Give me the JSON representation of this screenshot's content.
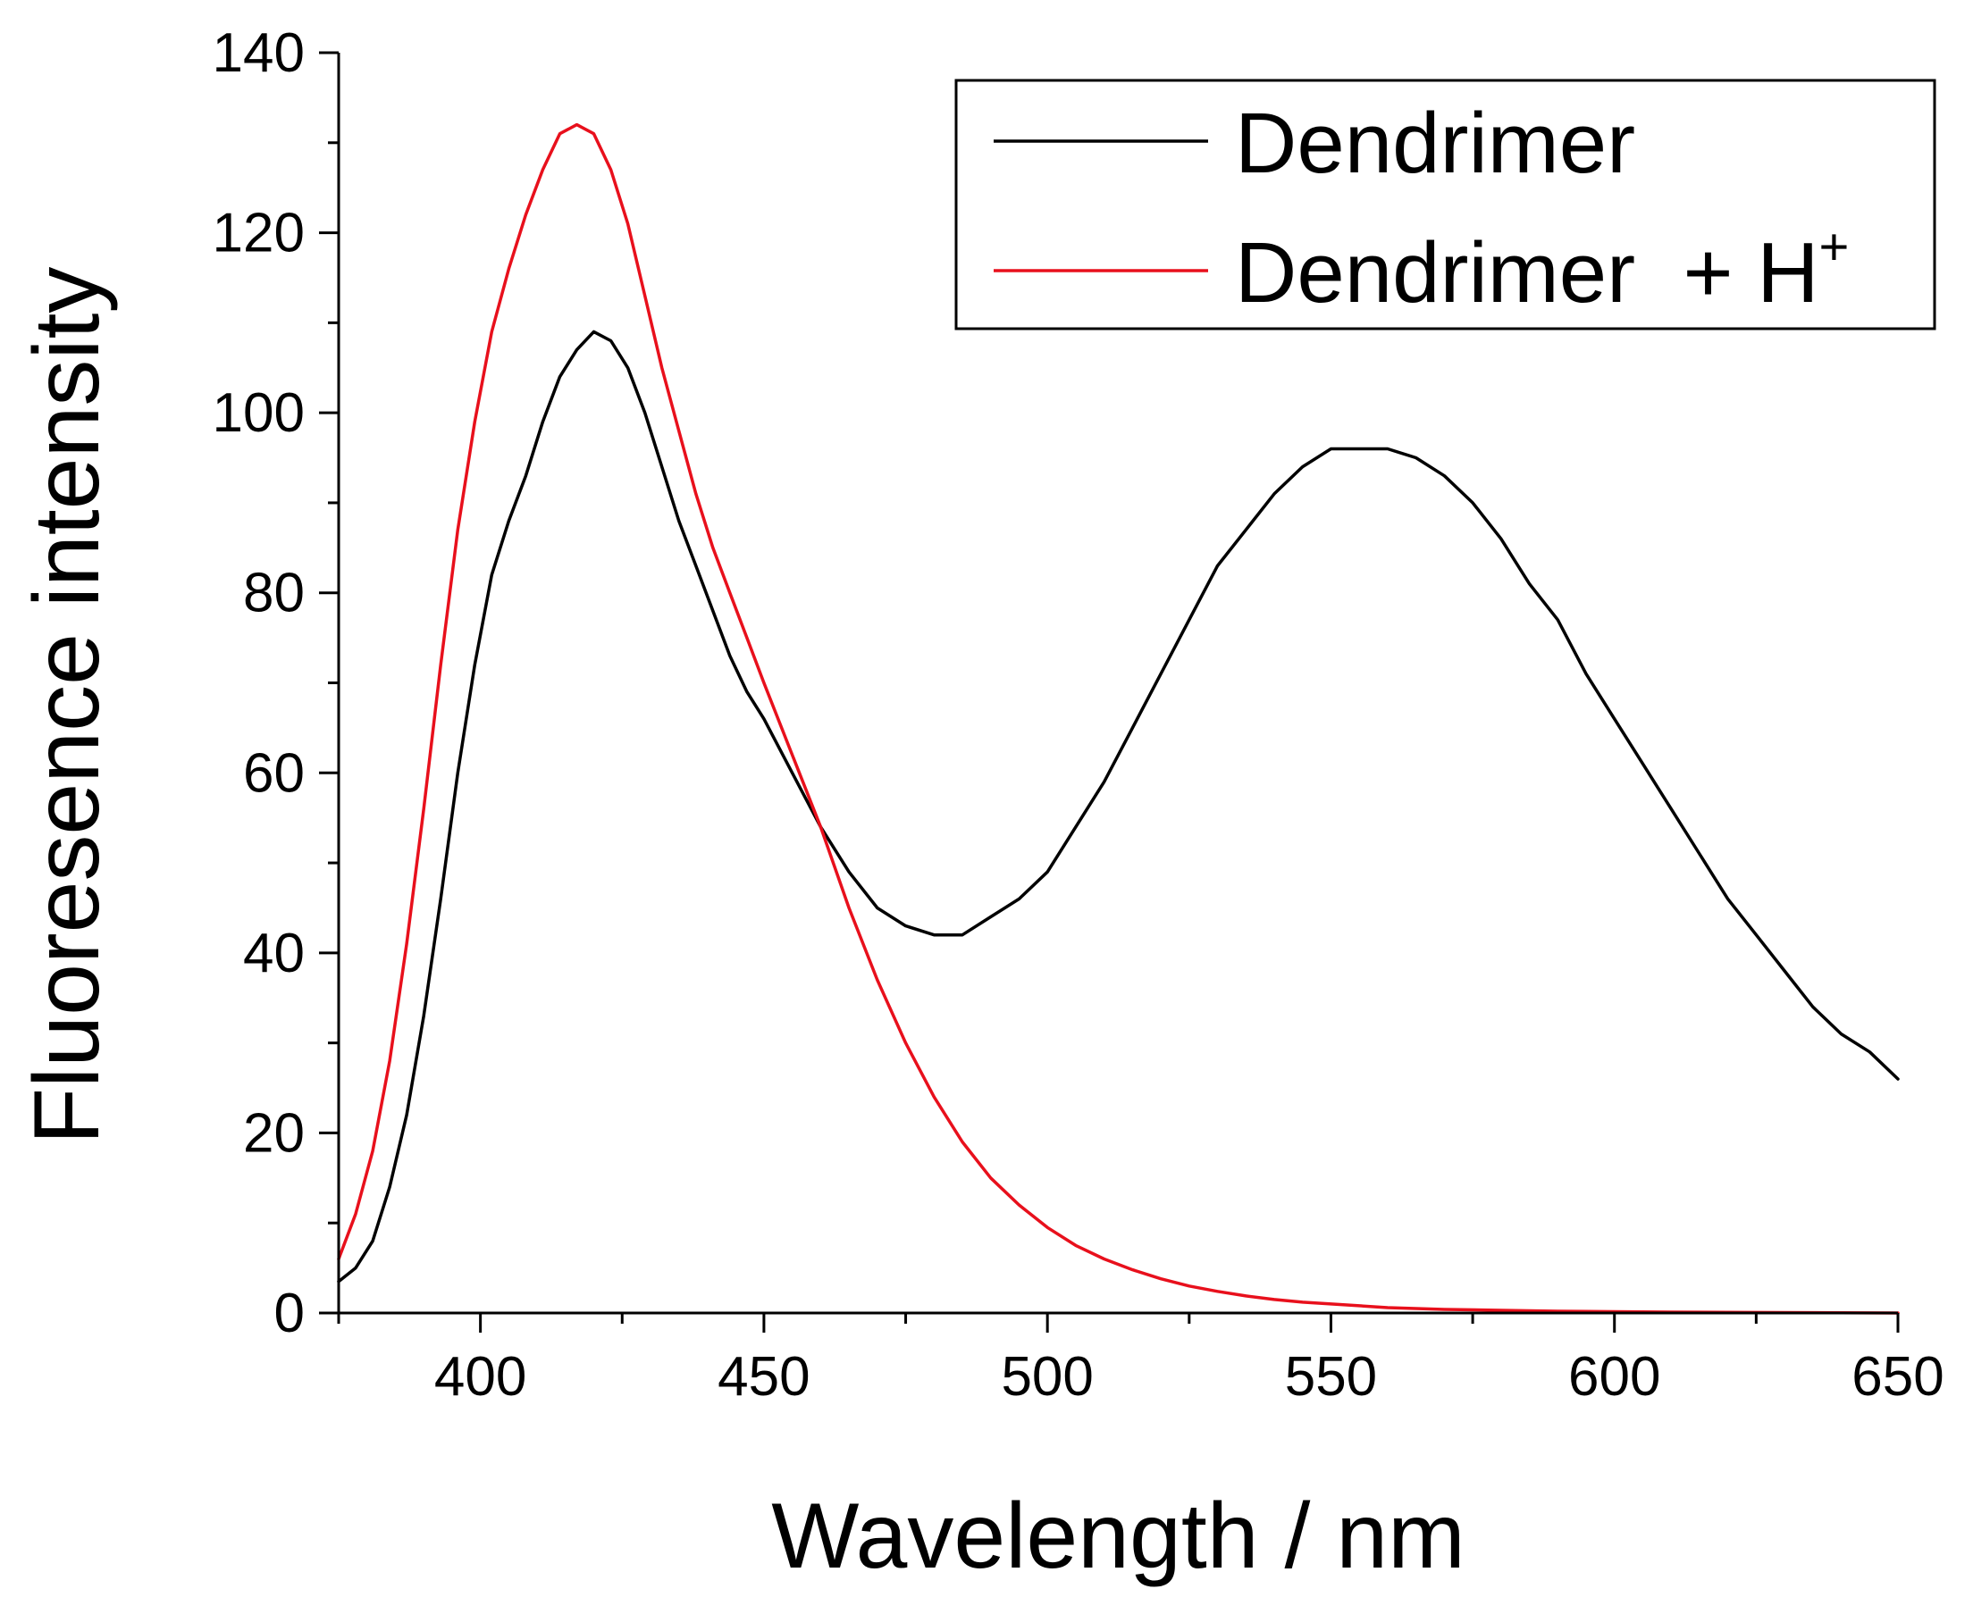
{
  "chart_data": {
    "type": "line",
    "title": "",
    "xlabel": "Wavelength / nm",
    "ylabel": "Fluoresence intensity",
    "xlim": [
      375,
      650
    ],
    "ylim": [
      0,
      140
    ],
    "x_ticks": [
      400,
      450,
      500,
      550,
      600,
      650
    ],
    "y_ticks": [
      0,
      20,
      40,
      60,
      80,
      100,
      120,
      140
    ],
    "x_tick_labels": [
      "400",
      "450",
      "500",
      "550",
      "600",
      "650"
    ],
    "y_tick_labels": [
      "0",
      "20",
      "40",
      "60",
      "80",
      "100",
      "120",
      "140"
    ],
    "grid": false,
    "legend_position": "top-right",
    "series": [
      {
        "name": "Dendrimer",
        "color": "#000000",
        "x": [
          375,
          378,
          381,
          384,
          387,
          390,
          393,
          396,
          399,
          402,
          405,
          408,
          411,
          414,
          417,
          420,
          423,
          426,
          429,
          432,
          435,
          438,
          441,
          444,
          447,
          450,
          455,
          460,
          465,
          470,
          475,
          480,
          485,
          490,
          495,
          500,
          505,
          510,
          515,
          520,
          525,
          530,
          535,
          540,
          545,
          550,
          555,
          560,
          565,
          570,
          575,
          580,
          585,
          590,
          595,
          600,
          605,
          610,
          615,
          620,
          625,
          630,
          635,
          640,
          645,
          650
        ],
        "values": [
          3.5,
          5,
          8,
          14,
          22,
          33,
          46,
          60,
          72,
          82,
          88,
          93,
          99,
          104,
          107,
          109,
          108,
          105,
          100,
          94,
          88,
          83,
          78,
          73,
          69,
          66,
          60,
          54,
          49,
          45,
          43,
          42,
          42,
          44,
          46,
          49,
          54,
          59,
          65,
          71,
          77,
          83,
          87,
          91,
          94,
          96,
          96,
          96,
          95,
          93,
          90,
          86,
          81,
          77,
          71,
          66,
          61,
          56,
          51,
          46,
          42,
          38,
          34,
          31,
          29,
          26
        ]
      },
      {
        "name": "Dendrimer  + H",
        "name_superscript": "+",
        "color": "#e8101c",
        "x": [
          375,
          378,
          381,
          384,
          387,
          390,
          393,
          396,
          399,
          402,
          405,
          408,
          411,
          414,
          417,
          420,
          423,
          426,
          429,
          432,
          435,
          438,
          441,
          444,
          447,
          450,
          455,
          460,
          465,
          470,
          475,
          480,
          485,
          490,
          495,
          500,
          505,
          510,
          515,
          520,
          525,
          530,
          535,
          540,
          545,
          550,
          555,
          560,
          570,
          580,
          590,
          600,
          610,
          620,
          630,
          640,
          650
        ],
        "values": [
          6,
          11,
          18,
          28,
          41,
          56,
          72,
          87,
          99,
          109,
          116,
          122,
          127,
          131,
          132,
          131,
          127,
          121,
          113,
          105,
          98,
          91,
          85,
          80,
          75,
          70,
          62,
          54,
          45,
          37,
          30,
          24,
          19,
          15,
          12,
          9.5,
          7.5,
          6,
          4.8,
          3.8,
          3,
          2.4,
          1.9,
          1.5,
          1.2,
          1,
          0.8,
          0.6,
          0.4,
          0.3,
          0.2,
          0.15,
          0.1,
          0.08,
          0.05,
          0.03,
          0
        ]
      }
    ]
  }
}
